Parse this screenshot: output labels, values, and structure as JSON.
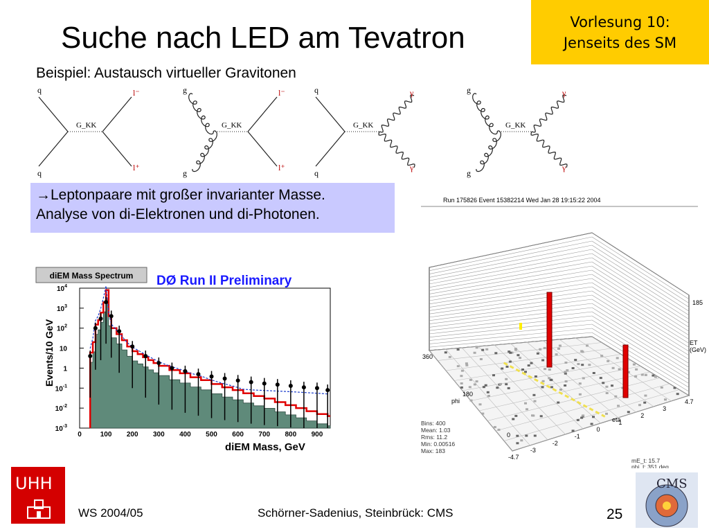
{
  "slide": {
    "title": "Suche nach LED am Tevatron",
    "lecture": {
      "line1": "Vorlesung 10:",
      "line2": "Jenseits des SM"
    },
    "subtitle": "Beispiel: Austausch virtueller Gravitonen",
    "callout": {
      "line1": "Leptonpaare mit großer invarianter Masse.",
      "line2": "Analyse von di-Elektronen und di-Photonen."
    }
  },
  "feynman": {
    "diagrams": [
      {
        "in_top": "q",
        "in_bottom": "q",
        "prop": "G_KK",
        "out_top": "l⁻",
        "out_bottom": "l⁺"
      },
      {
        "in_top": "g",
        "in_bottom": "g",
        "prop": "G_KK",
        "out_top": "l⁻",
        "out_bottom": "l⁺"
      },
      {
        "in_top": "q",
        "in_bottom": "q",
        "prop": "G_KK",
        "out_top": "γ",
        "out_bottom": "γ"
      },
      {
        "in_top": "g",
        "in_bottom": "g",
        "prop": "G_KK",
        "out_top": "γ",
        "out_bottom": "γ"
      }
    ]
  },
  "histogram": {
    "label_box": "diEM Mass Spectrum",
    "experiment": "DØ Run II Preliminary",
    "ylabel": "Events/10 GeV",
    "xlabel": "diEM Mass, GeV",
    "xticks": [
      "0",
      "100",
      "200",
      "300",
      "400",
      "500",
      "600",
      "700",
      "800",
      "900"
    ],
    "yticks": [
      {
        "base": "10",
        "exp": "4"
      },
      {
        "base": "10",
        "exp": "3"
      },
      {
        "base": "10",
        "exp": "2"
      },
      {
        "base": "10",
        "exp": ""
      },
      {
        "base": "1",
        "exp": ""
      },
      {
        "base": "10",
        "exp": "-1"
      },
      {
        "base": "10",
        "exp": "-2"
      },
      {
        "base": "10",
        "exp": "-3"
      }
    ],
    "colors": {
      "background": "#5f8a7a",
      "signal": "#e00000",
      "dashed": "#1a3ccc",
      "data": "#000000"
    }
  },
  "chart_data": {
    "type": "bar",
    "title": "diEM Mass Spectrum",
    "xlabel": "diEM Mass, GeV",
    "ylabel": "Events/10 GeV",
    "xlim": [
      0,
      950
    ],
    "ylim": [
      0.001,
      10000
    ],
    "log_y": true,
    "series": [
      {
        "x": [
          40,
          50,
          60,
          70,
          80,
          90,
          100,
          110,
          120,
          140,
          160,
          180,
          200,
          220,
          240,
          260,
          280,
          300,
          340,
          380,
          420,
          460,
          500,
          540,
          580,
          620,
          660,
          700,
          740,
          780,
          820,
          860,
          900,
          940
        ],
        "values": [
          6,
          20,
          150,
          250,
          600,
          2000,
          8000,
          400,
          100,
          50,
          25,
          12,
          7,
          5,
          3.5,
          2.5,
          1.8,
          1.3,
          0.8,
          0.55,
          0.35,
          0.25,
          0.16,
          0.11,
          0.08,
          0.055,
          0.04,
          0.03,
          0.02,
          0.014,
          0.01,
          0.007,
          0.005,
          0.004
        ]
      },
      {
        "x": [
          40,
          60,
          80,
          100,
          120,
          150,
          200,
          250,
          300,
          350,
          400,
          450,
          500,
          550,
          600,
          650,
          700,
          750,
          800,
          850,
          900,
          940
        ],
        "values": [
          4,
          100,
          300,
          2000,
          400,
          70,
          12,
          4,
          1.8,
          1,
          0.7,
          0.5,
          0.38,
          0.3,
          0.24,
          0.2,
          0.17,
          0.15,
          0.13,
          0.11,
          0.1,
          0.08
        ]
      }
    ],
    "legend": "none",
    "grid": false
  },
  "event_display": {
    "header": "Run 175826 Event 15382214 Wed Jan 28 19:15:22 2004",
    "et_max": "185",
    "et_label1": "ET",
    "et_label2": "(GeV)",
    "phi_label": "phi",
    "eta_label": "eta",
    "phi_ticks": [
      "360",
      "180",
      "0"
    ],
    "eta_ticks": [
      "-4.7",
      "-3",
      "-2",
      "-1",
      "0",
      "1",
      "2",
      "3",
      "4.7"
    ],
    "stats": [
      "Bins: 400",
      "Mean: 1.03",
      "Rms: 11.2",
      "Min: 0.00516",
      "Max: 183"
    ],
    "met": [
      "mE_t: 15.7",
      "phi_t: 351 deg"
    ]
  },
  "footer": {
    "term": "WS 2004/05",
    "authors": "Schörner-Sadenius, Steinbrück: CMS",
    "page": "25"
  },
  "logos": {
    "uhh": "UHH",
    "cms": "CMS"
  }
}
